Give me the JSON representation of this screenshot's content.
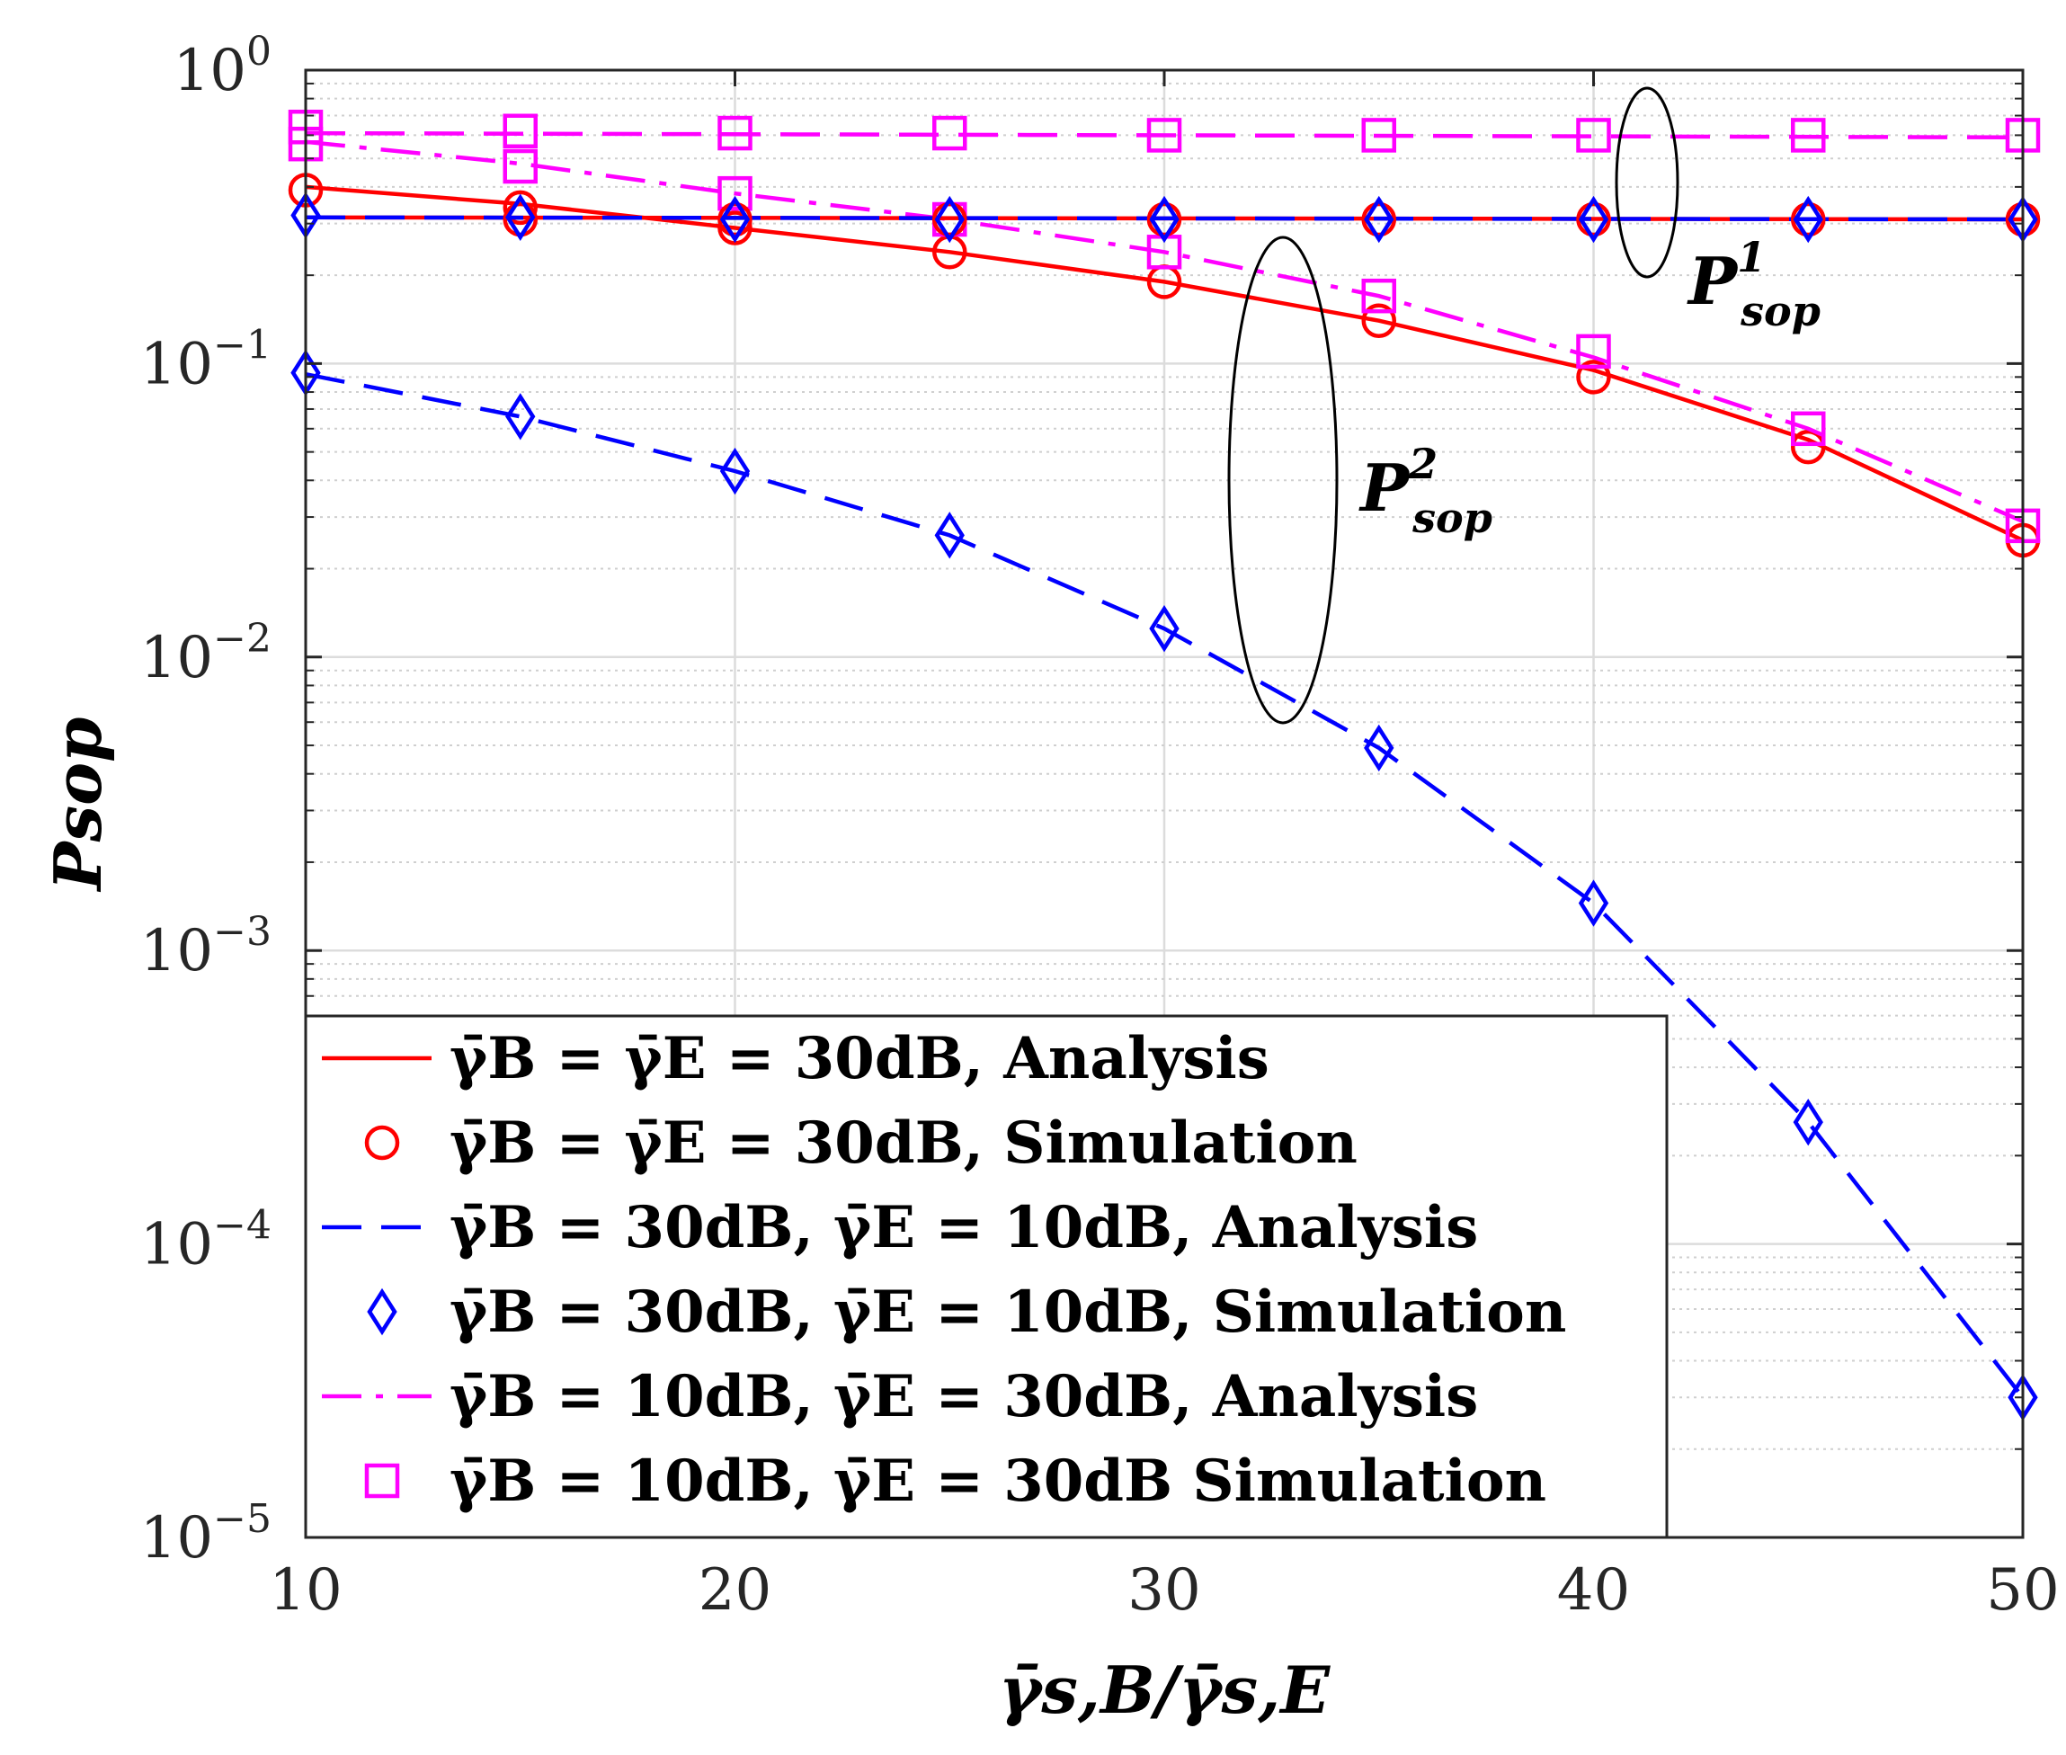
{
  "chart_data": {
    "type": "line",
    "title": "",
    "xlabel": "γ̄s,B/γ̄s,E",
    "ylabel": "Psop",
    "yscale": "log",
    "xlim": [
      10,
      50
    ],
    "ylim": [
      1e-05,
      1
    ],
    "grid": true,
    "legend_position": "bottom-left",
    "x_ticks": [
      "10",
      "20",
      "30",
      "40",
      "50"
    ],
    "y_ticks": [
      {
        "base": "10",
        "exp": "0"
      },
      {
        "base": "10",
        "exp": "−1"
      },
      {
        "base": "10",
        "exp": "−2"
      },
      {
        "base": "10",
        "exp": "−3"
      },
      {
        "base": "10",
        "exp": "−4"
      },
      {
        "base": "10",
        "exp": "−5"
      }
    ],
    "series": [
      {
        "name": "γ̄B = γ̄E = 30dB, Analysis",
        "kind": "line",
        "style": "solid",
        "color": "#ff0000",
        "x": [
          10,
          15,
          20,
          25,
          30,
          35,
          40,
          45,
          50
        ],
        "y": [
          0.4,
          0.35,
          0.29,
          0.24,
          0.19,
          0.14,
          0.095,
          0.055,
          0.025
        ]
      },
      {
        "name": "γ̄B = γ̄E = 30dB, Simulation",
        "kind": "marker",
        "marker": "circle",
        "color": "#ff0000",
        "x": [
          10,
          15,
          20,
          25,
          30,
          35,
          40,
          45,
          50
        ],
        "y": [
          0.39,
          0.34,
          0.29,
          0.24,
          0.19,
          0.14,
          0.09,
          0.052,
          0.025
        ]
      },
      {
        "name": "γ̄B = 30dB, γ̄E = 10dB, Analysis",
        "kind": "line",
        "style": "dashed",
        "color": "#0000ff",
        "x": [
          10,
          15,
          20,
          25,
          30,
          35,
          40,
          45,
          50
        ],
        "y": [
          0.092,
          0.066,
          0.043,
          0.026,
          0.0125,
          0.0049,
          0.00145,
          0.00026,
          3e-05
        ]
      },
      {
        "name": "γ̄B = 30dB, γ̄E = 10dB, Simulation",
        "kind": "marker",
        "marker": "diamond",
        "color": "#0000ff",
        "x": [
          10,
          15,
          20,
          25,
          30,
          35,
          40,
          45,
          50
        ],
        "y": [
          0.093,
          0.066,
          0.043,
          0.026,
          0.0125,
          0.0049,
          0.00145,
          0.00026,
          3e-05
        ]
      },
      {
        "name": "γ̄B = 10dB, γ̄E = 30dB, Analysis",
        "kind": "line",
        "style": "dashdot",
        "color": "#ff00ff",
        "x": [
          10,
          15,
          20,
          25,
          30,
          35,
          40,
          45,
          50
        ],
        "y": [
          0.57,
          0.48,
          0.38,
          0.31,
          0.24,
          0.17,
          0.105,
          0.06,
          0.029
        ]
      },
      {
        "name": "γ̄B = 10dB, γ̄E = 30dB Simulation",
        "kind": "marker",
        "marker": "square",
        "color": "#ff00ff",
        "x": [
          10,
          15,
          20,
          25,
          30,
          35,
          40,
          45,
          50
        ],
        "y": [
          0.56,
          0.47,
          0.38,
          0.31,
          0.24,
          0.17,
          0.11,
          0.06,
          0.028
        ]
      },
      {
        "kind": "line",
        "style": "dashed",
        "color": "#ff00ff",
        "x": [
          10,
          50
        ],
        "y": [
          0.61,
          0.59
        ]
      },
      {
        "kind": "marker",
        "marker": "square",
        "color": "#ff00ff",
        "x": [
          10,
          15,
          20,
          25,
          30,
          35,
          40,
          45,
          50
        ],
        "y": [
          0.64,
          0.62,
          0.61,
          0.61,
          0.6,
          0.6,
          0.6,
          0.6,
          0.6
        ]
      },
      {
        "kind": "line",
        "style": "solid",
        "color": "#ff0000",
        "x": [
          10,
          50
        ],
        "y": [
          0.315,
          0.31
        ]
      },
      {
        "kind": "line",
        "style": "dashed",
        "color": "#0000ff",
        "x": [
          10,
          50
        ],
        "y": [
          0.315,
          0.31
        ]
      },
      {
        "kind": "marker",
        "marker": "circle",
        "color": "#ff0000",
        "x": [
          15,
          20,
          25,
          30,
          35,
          40,
          45,
          50
        ],
        "y": [
          0.31,
          0.31,
          0.31,
          0.31,
          0.31,
          0.31,
          0.31,
          0.31
        ]
      },
      {
        "kind": "marker",
        "marker": "diamond",
        "color": "#0000ff",
        "x": [
          10,
          15,
          20,
          25,
          30,
          35,
          40,
          45,
          50
        ],
        "y": [
          0.32,
          0.315,
          0.31,
          0.31,
          0.31,
          0.31,
          0.31,
          0.31,
          0.31
        ]
      }
    ],
    "annotations": [
      {
        "base": "P",
        "sup": "1",
        "sub": "sop"
      },
      {
        "base": "P",
        "sup": "2",
        "sub": "sop"
      }
    ],
    "legend_entries": [
      {
        "label": "γ̄B = γ̄E = 30dB, Analysis",
        "kind": "line",
        "style": "solid",
        "color": "#ff0000"
      },
      {
        "label": "γ̄B = γ̄E = 30dB, Simulation",
        "kind": "marker",
        "marker": "circle",
        "color": "#ff0000"
      },
      {
        "label": "γ̄B = 30dB, γ̄E = 10dB, Analysis",
        "kind": "line",
        "style": "dashed",
        "color": "#0000ff"
      },
      {
        "label": "γ̄B = 30dB, γ̄E = 10dB, Simulation",
        "kind": "marker",
        "marker": "diamond",
        "color": "#0000ff"
      },
      {
        "label": "γ̄B = 10dB, γ̄E = 30dB, Analysis",
        "kind": "line",
        "style": "dashdot",
        "color": "#ff00ff"
      },
      {
        "label": "γ̄B = 10dB, γ̄E = 30dB Simulation",
        "kind": "marker",
        "marker": "square",
        "color": "#ff00ff"
      }
    ]
  }
}
